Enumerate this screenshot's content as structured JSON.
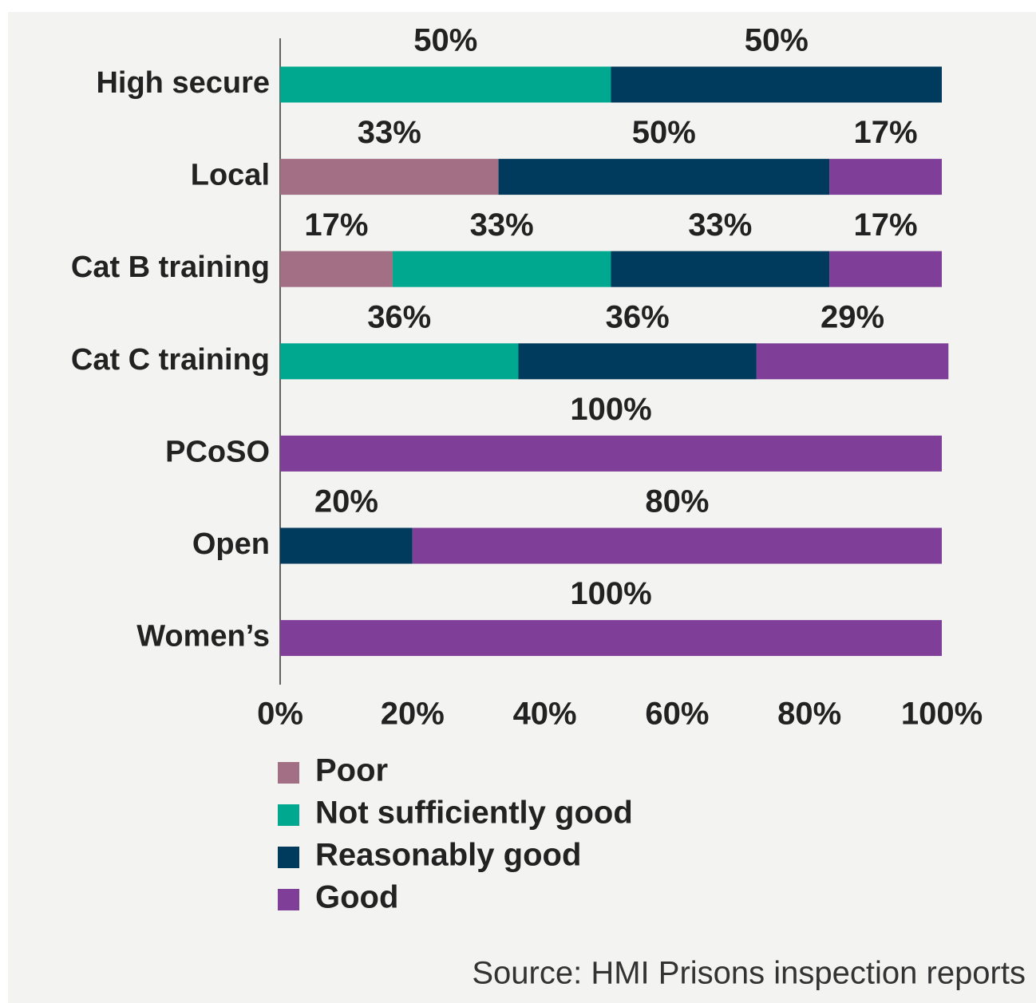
{
  "chart_data": {
    "type": "stacked_bar_horizontal",
    "categories": [
      "High secure",
      "Local",
      "Cat B training",
      "Cat C training",
      "PCoSO",
      "Open",
      "Women’s"
    ],
    "series": [
      {
        "name": "Poor",
        "color": "#a36f84",
        "values": [
          null,
          33,
          17,
          null,
          null,
          null,
          null
        ],
        "value_labels": [
          null,
          "33%",
          "17%",
          null,
          null,
          null,
          null
        ]
      },
      {
        "name": "Not sufficiently good",
        "color": "#00a88f",
        "values": [
          50,
          null,
          33,
          36,
          null,
          null,
          null
        ],
        "value_labels": [
          "50%",
          null,
          "33%",
          "36%",
          null,
          null,
          null
        ]
      },
      {
        "name": "Reasonably good",
        "color": "#003a5c",
        "values": [
          50,
          50,
          33,
          36,
          null,
          20,
          null
        ],
        "value_labels": [
          "50%",
          "50%",
          "33%",
          "36%",
          null,
          "20%",
          null
        ]
      },
      {
        "name": "Good",
        "color": "#7f3f98",
        "values": [
          null,
          17,
          17,
          29,
          100,
          80,
          100
        ],
        "value_labels": [
          null,
          "17%",
          "17%",
          "29%",
          "100%",
          "80%",
          "100%"
        ]
      }
    ],
    "xlim": [
      0,
      100
    ],
    "xticks": [
      {
        "value": 0,
        "label": "0%"
      },
      {
        "value": 20,
        "label": "20%"
      },
      {
        "value": 40,
        "label": "40%"
      },
      {
        "value": 60,
        "label": "60%"
      },
      {
        "value": 80,
        "label": "80%"
      },
      {
        "value": 100,
        "label": "100%"
      }
    ],
    "grid": false,
    "source": "Source: HMI Prisons inspection reports"
  }
}
